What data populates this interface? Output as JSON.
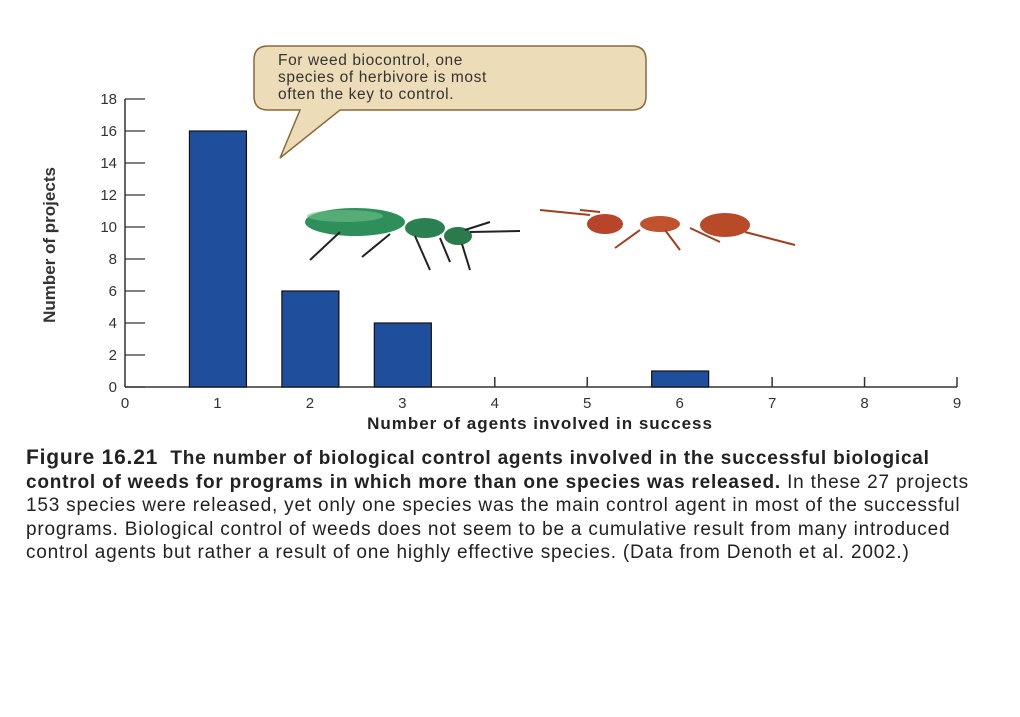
{
  "chart_data": {
    "type": "bar",
    "categories": [
      1,
      2,
      3,
      4,
      5,
      6,
      7,
      8
    ],
    "values": [
      16,
      6,
      4,
      0,
      0,
      1,
      0,
      0
    ],
    "xlabel": "Number of agents involved in success",
    "ylabel": "Number of projects",
    "xlim": [
      0,
      9
    ],
    "ylim": [
      0,
      18
    ],
    "xticks": [
      "0",
      "1",
      "2",
      "3",
      "4",
      "5",
      "6",
      "7",
      "8",
      "9"
    ],
    "yticks": [
      "0",
      "2",
      "4",
      "6",
      "8",
      "10",
      "12",
      "14",
      "16",
      "18"
    ],
    "bar_color": "#1f4e9c",
    "grid": false,
    "annotation": [
      "For weed biocontrol, one",
      "species of herbivore is most",
      "often the key to control."
    ]
  },
  "caption": {
    "figure_number": "Figure 16.21",
    "title": "The number of biological control agents involved in the successful biological control of weeds for programs in which more than one species was released.",
    "body": "In these 27 projects 153 species were released, yet only one species was the main control agent in most of the successful programs. Biological control of weeds does not seem to be a cumulative result from many introduced control agents but rather a result of one highly effective species. (Data from Denoth et al. 2002.)"
  }
}
